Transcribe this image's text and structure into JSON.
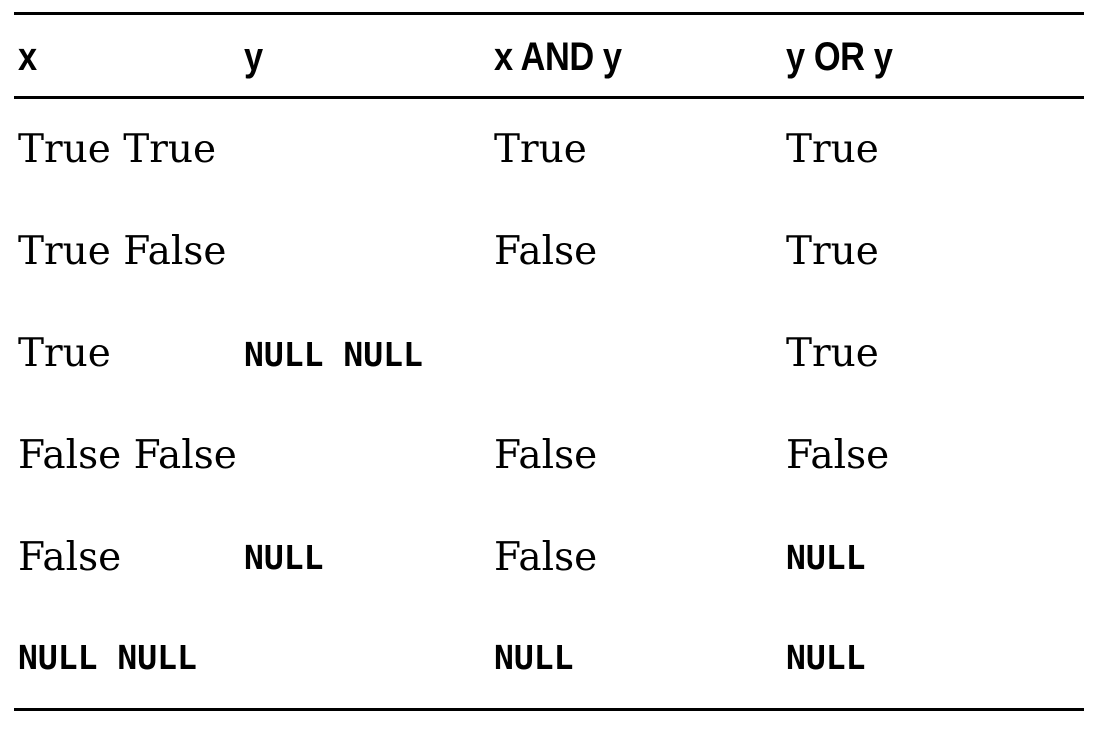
{
  "table": {
    "headers": [
      "x",
      "y",
      "x AND y",
      "y OR y"
    ],
    "rows": [
      {
        "c1": "True True",
        "c2": "",
        "c3": "True",
        "c4": "True"
      },
      {
        "c1": "True False",
        "c2": "",
        "c3": "False",
        "c4": "True"
      },
      {
        "c1": "True",
        "c2": "NULL NULL",
        "c3": "",
        "c4": "True"
      },
      {
        "c1": "False False",
        "c2": "",
        "c3": "False",
        "c4": "False"
      },
      {
        "c1": "False",
        "c2": "NULL",
        "c3": "False",
        "c4": "NULL"
      },
      {
        "c1": "NULL NULL",
        "c2": "",
        "c3": "NULL",
        "c4": "NULL"
      }
    ]
  }
}
